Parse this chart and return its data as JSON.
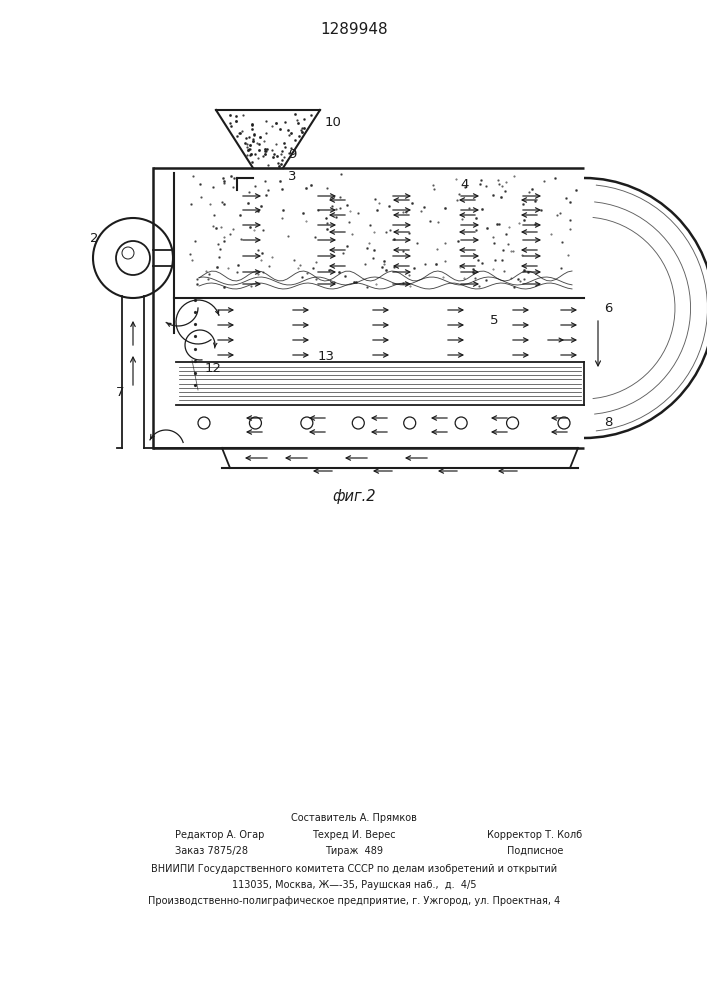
{
  "title": "1289948",
  "caption": "фиг.2",
  "footer_line1": "Составитель А. Прямков",
  "footer_col1_line1": "Редактор А. Огар",
  "footer_col2_line1": "Техред И. Верес",
  "footer_col3_line1": "Корректор Т. Колб",
  "footer_col1_line2": "Заказ 7875/28",
  "footer_col2_line2": "Тираж  489",
  "footer_col3_line2": "Подписное",
  "footer_line4": "ВНИИПИ Государственного комитета СССР по делам изобретений и открытий",
  "footer_line5": "113035, Москва, Ж—-35, Раушская наб.,  д.  4/5",
  "footer_line6": "Производственно-полиграфическое предприятие, г. Ужгород, ул. Проектная, 4",
  "line_color": "#1c1c1c"
}
